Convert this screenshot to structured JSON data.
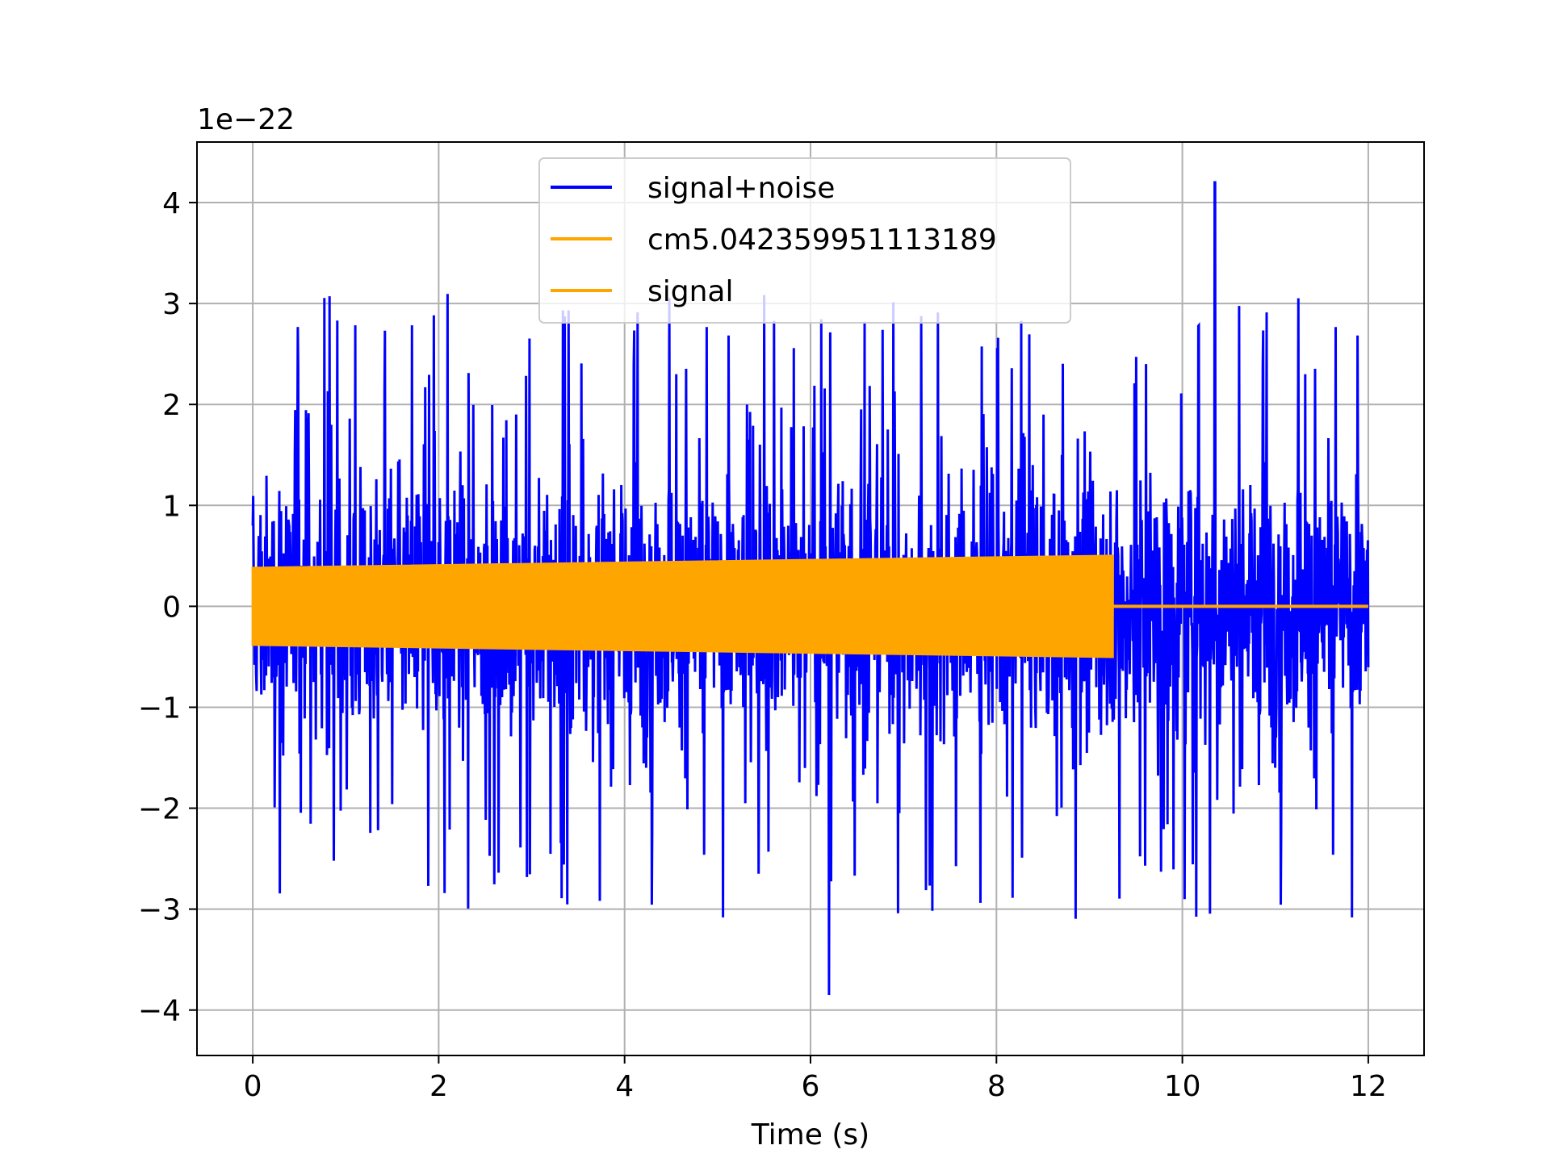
{
  "chart_data": {
    "type": "line",
    "title": "",
    "xlabel": "Time (s)",
    "ylabel": "",
    "y_offset_label": "1e−22",
    "xlim": [
      -0.6,
      12.6
    ],
    "ylim": [
      -4.45,
      4.6
    ],
    "x_ticks": [
      0,
      2,
      4,
      6,
      8,
      10,
      12
    ],
    "x_tick_labels": [
      "0",
      "2",
      "4",
      "6",
      "8",
      "10",
      "12"
    ],
    "y_ticks": [
      -4,
      -3,
      -2,
      -1,
      0,
      1,
      2,
      3,
      4
    ],
    "y_tick_labels": [
      "−4",
      "−3",
      "−2",
      "−1",
      "0",
      "1",
      "2",
      "3",
      "4"
    ],
    "grid": true,
    "legend_position": "upper center",
    "series": [
      {
        "name": "signal+noise",
        "color": "#0000ff",
        "kind": "noise",
        "x_range": [
          0,
          12
        ],
        "typical_envelope": 1.3,
        "peak_max": 4.2,
        "peak_min": -3.85,
        "largest_peak_time": 10.35,
        "largest_trough_time": 6.2
      },
      {
        "name": "cm5.042359951113189",
        "color": "#ffa500",
        "kind": "none"
      },
      {
        "name": "signal",
        "color": "#ffa500",
        "kind": "chirp_band",
        "x_range": [
          0,
          12
        ],
        "amplitude_start": 0.38,
        "amplitude_end": 0.5,
        "cutoff_time": 9.25,
        "after_cutoff_value": 0
      }
    ]
  }
}
